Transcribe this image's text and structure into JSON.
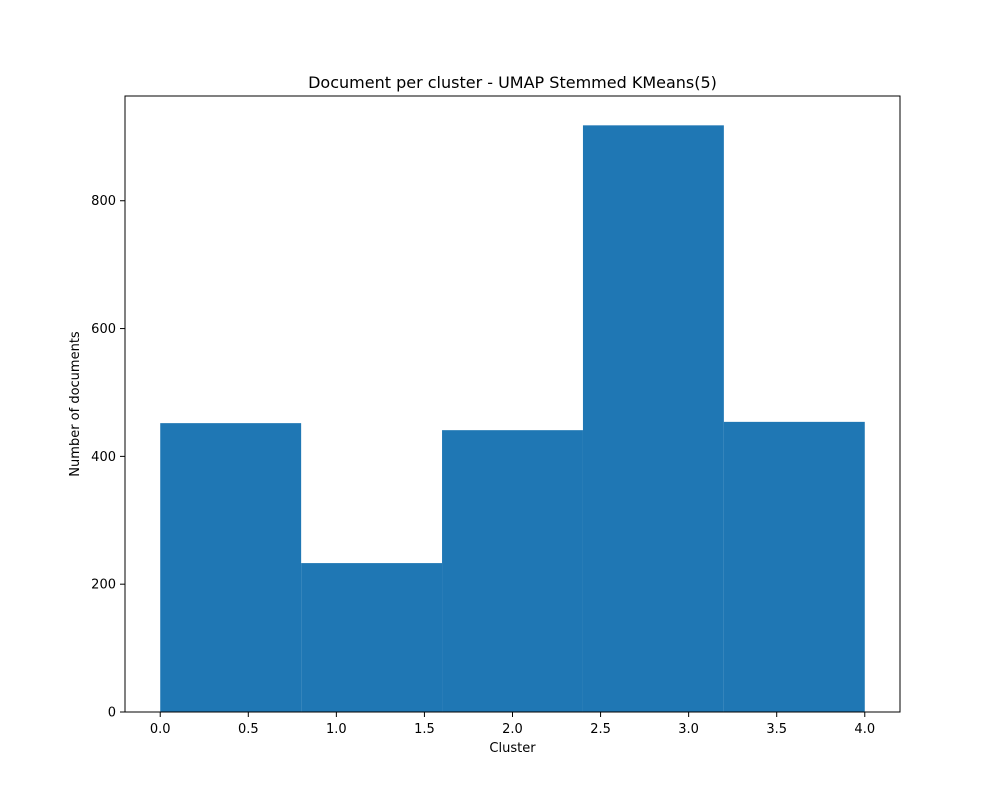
{
  "chart_data": {
    "type": "bar",
    "title": "Document per cluster - UMAP Stemmed KMeans(5)",
    "xlabel": "Cluster",
    "ylabel": "Number of documents",
    "bins": [
      {
        "x0": 0.0,
        "x1": 0.8,
        "value": 452
      },
      {
        "x0": 0.8,
        "x1": 1.6,
        "value": 233
      },
      {
        "x0": 1.6,
        "x1": 2.4,
        "value": 441
      },
      {
        "x0": 2.4,
        "x1": 3.2,
        "value": 918
      },
      {
        "x0": 3.2,
        "x1": 4.0,
        "value": 454
      }
    ],
    "xlim": [
      -0.2,
      4.2
    ],
    "ylim": [
      0,
      963.9
    ],
    "xticks": [
      0.0,
      0.5,
      1.0,
      1.5,
      2.0,
      2.5,
      3.0,
      3.5,
      4.0
    ],
    "xtick_labels": [
      "0.0",
      "0.5",
      "1.0",
      "1.5",
      "2.0",
      "2.5",
      "3.0",
      "3.5",
      "4.0"
    ],
    "yticks": [
      0,
      200,
      400,
      600,
      800
    ],
    "ytick_labels": [
      "0",
      "200",
      "400",
      "600",
      "800"
    ],
    "bar_color": "#1f77b4",
    "grid": false,
    "legend": false
  }
}
